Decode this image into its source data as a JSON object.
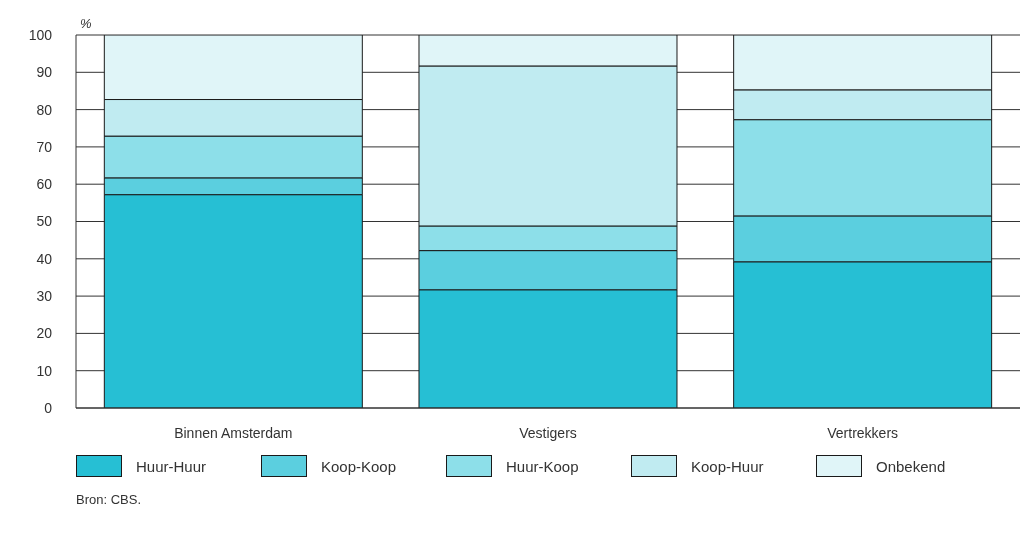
{
  "chart_data": {
    "type": "bar",
    "stacked": true,
    "ylabel": "%",
    "categories": [
      "Binnen Amsterdam",
      "Vestigers",
      "Vertrekkers"
    ],
    "series": [
      {
        "name": "Huur-Huur",
        "color": "#26bfd4",
        "values": [
          57.2,
          31.7,
          39.2
        ]
      },
      {
        "name": "Koop-Koop",
        "color": "#5bcfdf",
        "values": [
          4.5,
          10.5,
          12.3
        ]
      },
      {
        "name": "Huur-Koop",
        "color": "#8ddfe9",
        "values": [
          11.2,
          6.6,
          25.8
        ]
      },
      {
        "name": "Koop-Huur",
        "color": "#c0ebf1",
        "values": [
          9.8,
          42.9,
          8.0
        ]
      },
      {
        "name": "Onbekend",
        "color": "#e0f5f8",
        "values": [
          17.3,
          8.3,
          14.7
        ]
      }
    ],
    "ylim": [
      0,
      100
    ],
    "yticks": [
      0,
      10,
      20,
      30,
      40,
      50,
      60,
      70,
      80,
      90,
      100
    ],
    "grid": "y",
    "legend": "bottom",
    "annotations": [
      "Bron: CBS."
    ]
  }
}
